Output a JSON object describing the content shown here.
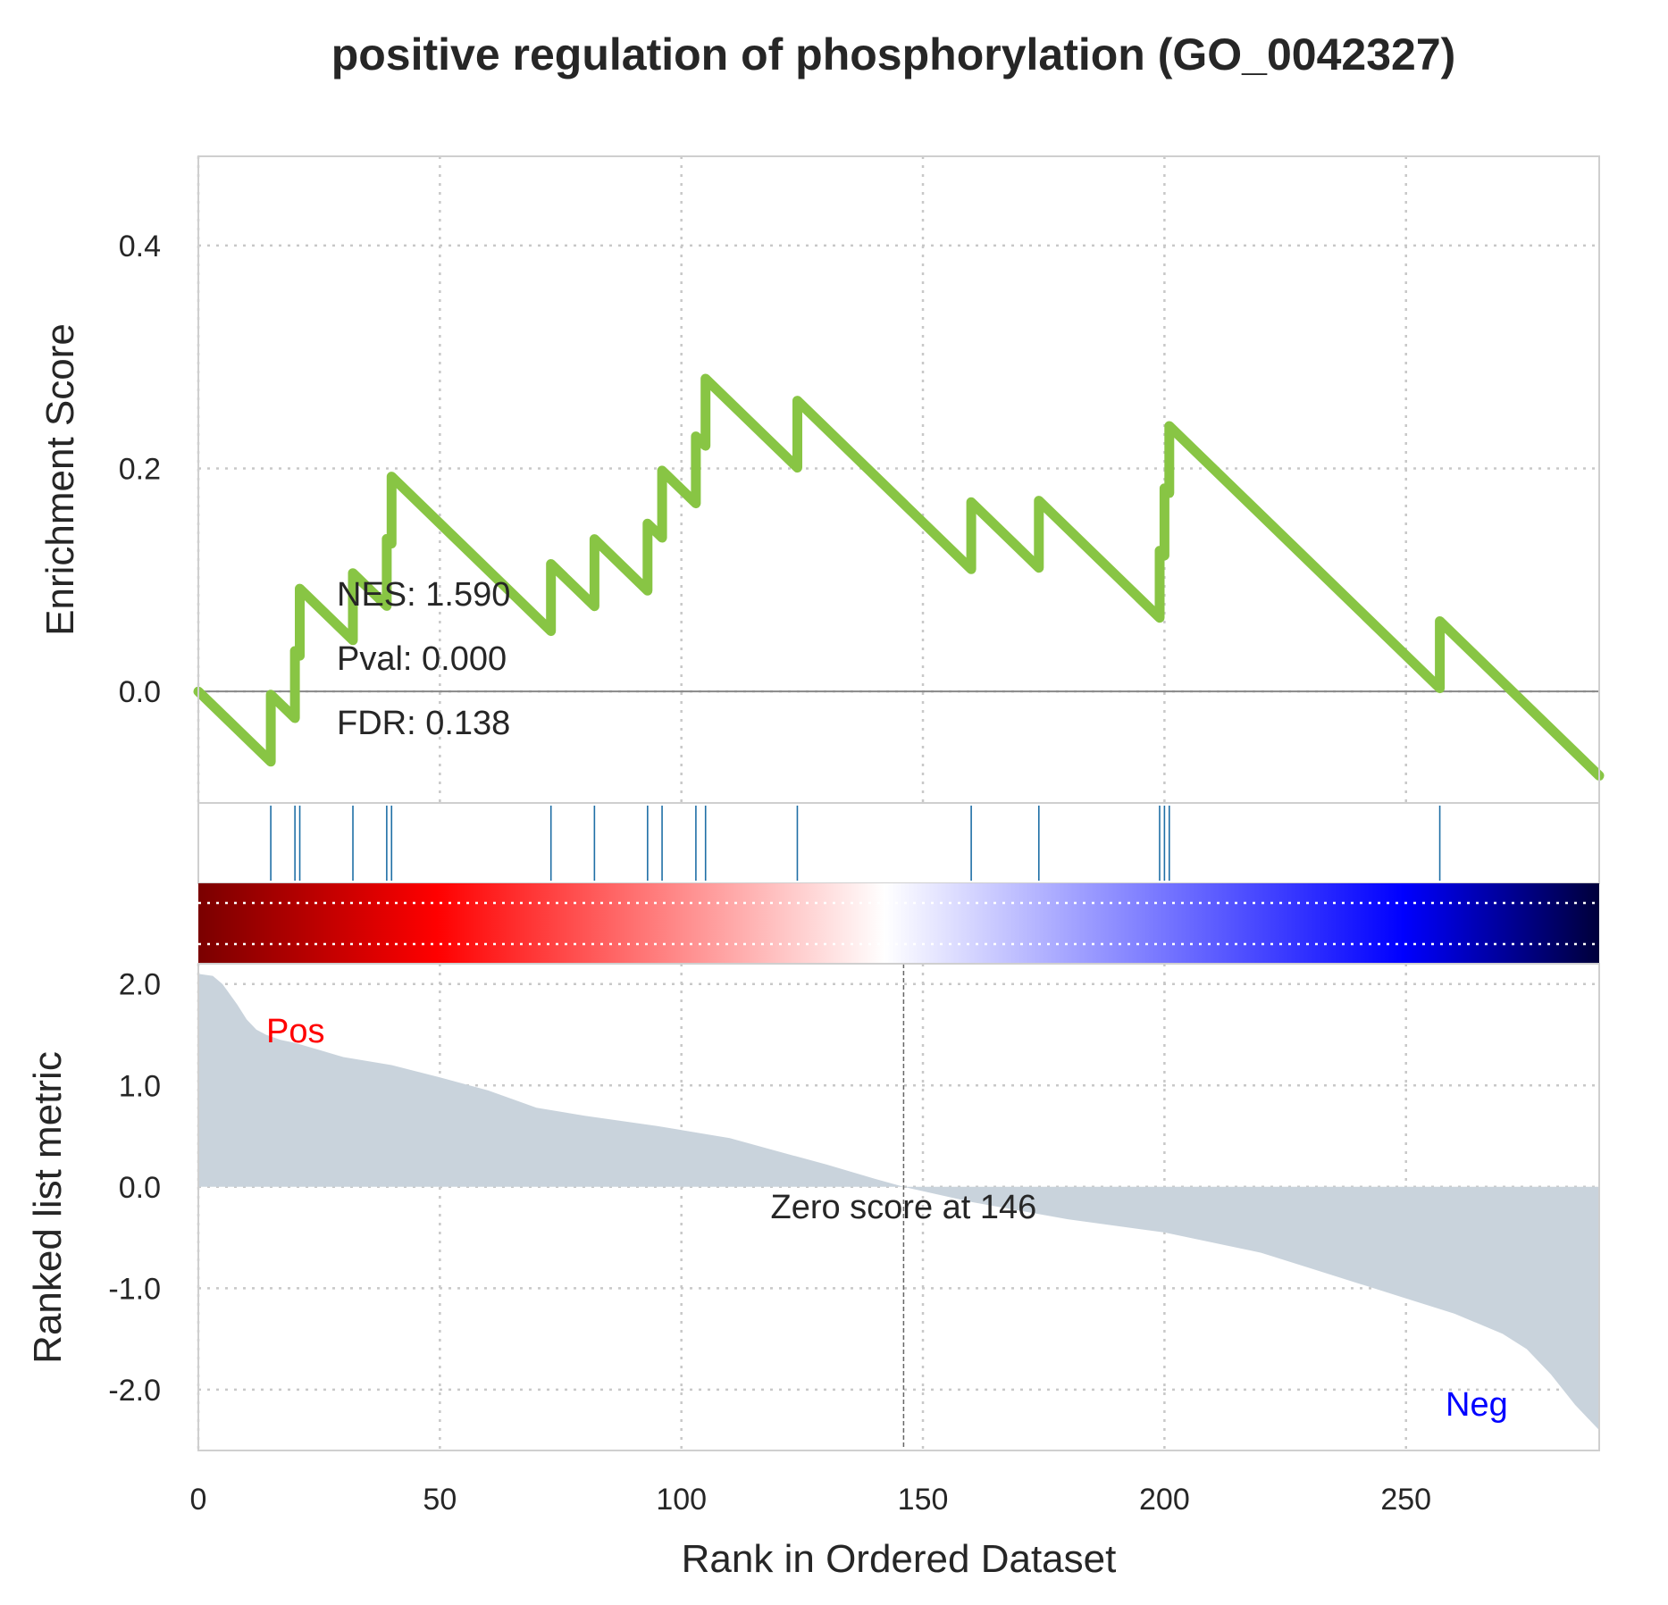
{
  "chart_data": {
    "type": "line",
    "title": "positive regulation of phosphorylation (GO_0042327)",
    "xlabel": "Rank in Ordered Dataset",
    "colors": {
      "es_line": "#88c544",
      "hits": "#1f6fa6",
      "metric_fill": "#c9d3dc",
      "pos": "#ff0000",
      "neg": "#0000ff"
    },
    "n_genes": 291,
    "xlim": [
      0,
      290
    ],
    "x_ticks": [
      "0",
      "50",
      "100",
      "150",
      "200",
      "250"
    ],
    "enrichment": {
      "ylabel": "Enrichment Score",
      "ylim": [
        -0.1,
        0.48
      ],
      "y_ticks": [
        "0.0",
        "0.2",
        "0.4"
      ],
      "stats": {
        "nes": "NES: 1.590",
        "pval": "Pval: 0.000",
        "fdr": "FDR: 0.138"
      },
      "hits": [
        15,
        20,
        21,
        32,
        39,
        40,
        73,
        82,
        93,
        96,
        103,
        105,
        124,
        160,
        174,
        199,
        200,
        201,
        257
      ],
      "start": 0.0,
      "step_down": -0.0042
    },
    "ranked_metric": {
      "ylabel": "Ranked list metric",
      "ylim": [
        -2.6,
        2.2
      ],
      "y_ticks": [
        "2.0",
        "1.0",
        "0.0",
        "-1.0",
        "-2.0"
      ],
      "pos_label": "Pos",
      "neg_label": "Neg",
      "zero_label": "Zero score at 146",
      "zero_rank": 146,
      "profile_rank": [
        0,
        3,
        5,
        8,
        10,
        12,
        14,
        17,
        20,
        25,
        30,
        40,
        50,
        60,
        70,
        80,
        95,
        110,
        120,
        130,
        140,
        146,
        160,
        180,
        200,
        220,
        230,
        240,
        250,
        260,
        270,
        275,
        280,
        285,
        290
      ],
      "profile_value": [
        2.1,
        2.08,
        2.0,
        1.8,
        1.65,
        1.55,
        1.5,
        1.45,
        1.42,
        1.35,
        1.28,
        1.2,
        1.08,
        0.95,
        0.78,
        0.7,
        0.6,
        0.48,
        0.35,
        0.22,
        0.08,
        0.0,
        -0.15,
        -0.32,
        -0.45,
        -0.65,
        -0.8,
        -0.95,
        -1.1,
        -1.25,
        -1.45,
        -1.6,
        -1.85,
        -2.15,
        -2.4
      ]
    }
  }
}
